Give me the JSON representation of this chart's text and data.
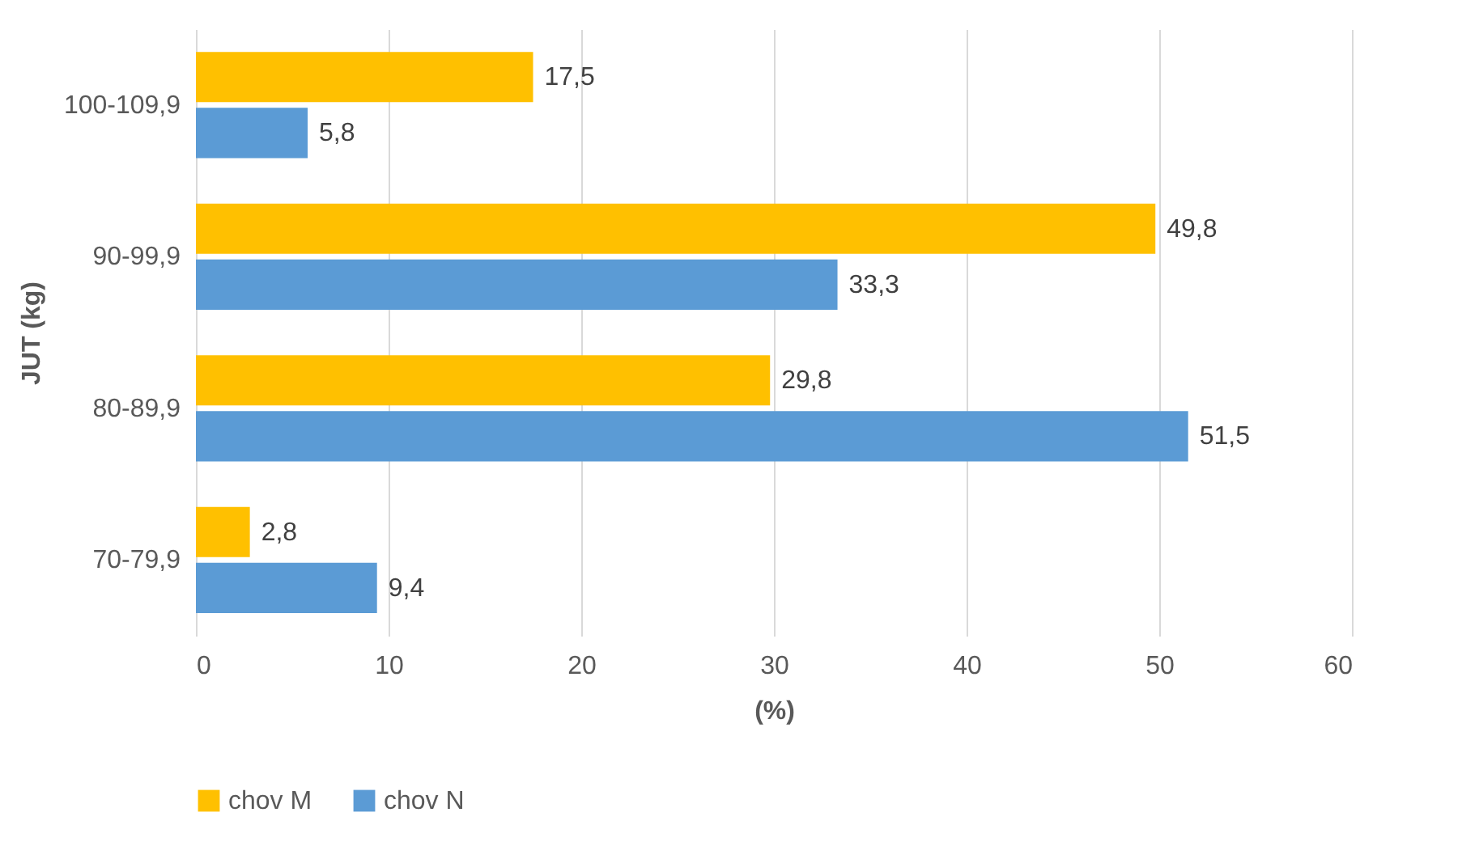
{
  "chart_data": {
    "type": "bar",
    "orientation": "horizontal",
    "xlabel": "(%)",
    "ylabel": "JUT (kg)",
    "categories": [
      "100-109,9",
      "90-99,9",
      "80-89,9",
      "70-79,9"
    ],
    "series": [
      {
        "name": "chov M",
        "color": "#ffc000",
        "values": [
          17.5,
          49.8,
          29.8,
          2.8
        ],
        "value_labels": [
          "17,5",
          "49,8",
          "29,8",
          "2,8"
        ]
      },
      {
        "name": "chov N",
        "color": "#5b9bd5",
        "values": [
          5.8,
          33.3,
          51.5,
          9.4
        ],
        "value_labels": [
          "5,8",
          "33,3",
          "51,5",
          "9,4"
        ]
      }
    ],
    "xlim": [
      0,
      60
    ],
    "xticks": [
      0,
      10,
      20,
      30,
      40,
      50,
      60
    ],
    "grid": "x",
    "legend": "bottom"
  }
}
